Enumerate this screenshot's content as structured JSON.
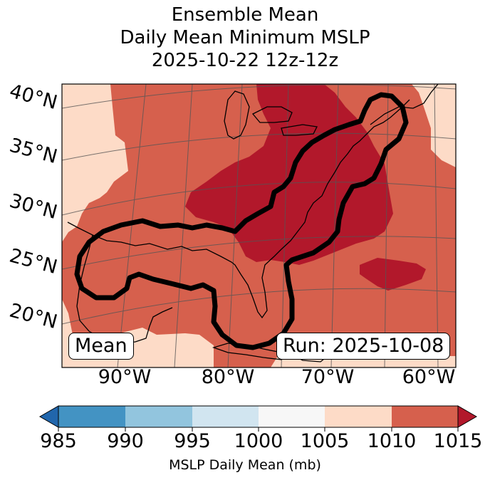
{
  "title": {
    "line1": "Ensemble Mean",
    "line2": "Daily Mean Minimum MSLP",
    "line3": "2025-10-22 12z-12z"
  },
  "map": {
    "lat_labels": [
      "40°N",
      "35°N",
      "30°N",
      "25°N",
      "20°N"
    ],
    "lon_labels": [
      "90°W",
      "80°W",
      "70°W",
      "60°W"
    ],
    "mean_label": "Mean",
    "run_label": "Run: 2025-10-08",
    "colors": {
      "light": "#fddbc7",
      "mid": "#d6604d",
      "dark": "#b2182b",
      "contour": "#000000"
    }
  },
  "colorbar": {
    "ticks": [
      "985",
      "990",
      "995",
      "1000",
      "1005",
      "1010",
      "1015"
    ],
    "colors": [
      "#2166ac",
      "#4393c3",
      "#92c5de",
      "#d1e5f0",
      "#f7f7f7",
      "#fddbc7",
      "#d6604d",
      "#b2182b"
    ],
    "label": "MSLP Daily Mean (mb)"
  }
}
